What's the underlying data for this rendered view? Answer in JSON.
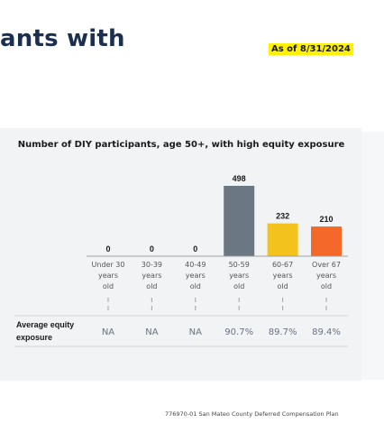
{
  "header": {
    "title_fragment": "ants with",
    "as_of": "As of 8/31/2024"
  },
  "chart_data": {
    "type": "bar",
    "title": "Number of DIY participants, age 50+, with high equity exposure",
    "categories": [
      [
        "Under 30",
        "years",
        "old"
      ],
      [
        "30-39",
        "years",
        "old"
      ],
      [
        "40-49",
        "years",
        "old"
      ],
      [
        "50-59",
        "years",
        "old"
      ],
      [
        "60-67",
        "years",
        "old"
      ],
      [
        "Over 67",
        "years",
        "old"
      ]
    ],
    "values": [
      0,
      0,
      0,
      498,
      232,
      210
    ],
    "value_labels": [
      "0",
      "0",
      "0",
      "498",
      "232",
      "210"
    ],
    "bar_colors": [
      "#6b7883",
      "#6b7883",
      "#6b7883",
      "#6b7883",
      "#f4c21d",
      "#f4682a"
    ],
    "ylim": [
      0,
      498
    ],
    "grid": false,
    "row_label": [
      "Average equity",
      "exposure"
    ],
    "row_values": [
      "NA",
      "NA",
      "NA",
      "90.7%",
      "89.7%",
      "89.4%"
    ]
  },
  "footer": {
    "text": "776970-01 San Mateo County Deferred Compensation Plan"
  }
}
